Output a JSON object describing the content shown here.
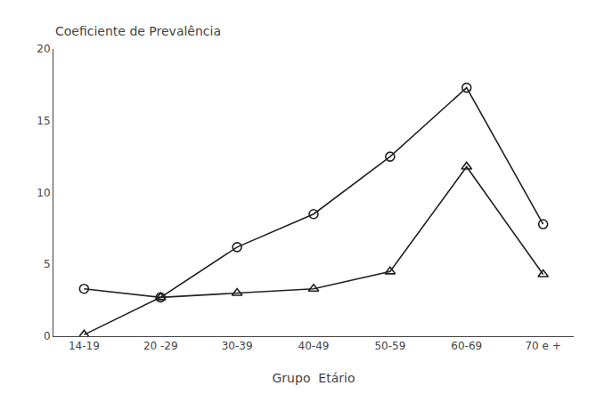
{
  "chart_data": {
    "type": "line",
    "ylabel": "Coeficiente de Prevalência",
    "xlabel": "Grupo  Etário",
    "categories": [
      "14-19",
      "20 -29",
      "30-39",
      "40-49",
      "50-59",
      "60-69",
      "70 e +"
    ],
    "series": [
      {
        "color": "#222222",
        "marker": "circle",
        "values": [
          3.3,
          2.7,
          6.2,
          8.5,
          12.5,
          17.3,
          7.8
        ]
      },
      {
        "color": "#222222",
        "marker": "triangle",
        "values": [
          0.1,
          2.7,
          3.0,
          3.3,
          4.5,
          11.8,
          4.3
        ]
      }
    ],
    "ylim": [
      0,
      20
    ],
    "yticks": [
      0,
      5,
      10,
      15,
      20
    ],
    "grid": false
  }
}
